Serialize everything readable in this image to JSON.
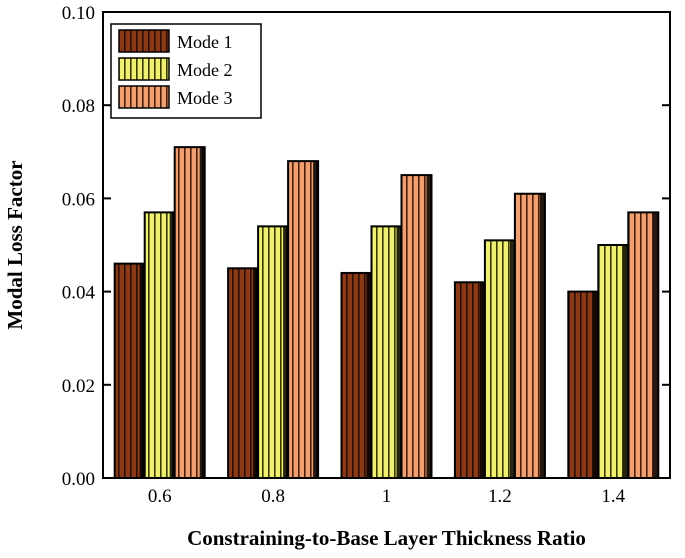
{
  "chart_data": {
    "type": "bar",
    "title": "",
    "xlabel": "Constraining-to-Base Layer Thickness Ratio",
    "ylabel": "Modal Loss Factor",
    "categories": [
      "0.6",
      "0.8",
      "1",
      "1.2",
      "1.4"
    ],
    "series": [
      {
        "name": "Mode 1",
        "color": "#8B3A18",
        "stripe": "#2a0f04",
        "values": [
          0.046,
          0.045,
          0.044,
          0.042,
          0.04
        ]
      },
      {
        "name": "Mode 2",
        "color": "#F0F070",
        "stripe": "#3a3a00",
        "values": [
          0.057,
          0.054,
          0.054,
          0.051,
          0.05
        ]
      },
      {
        "name": "Mode 3",
        "color": "#F0A070",
        "stripe": "#4a1e08",
        "values": [
          0.071,
          0.068,
          0.065,
          0.061,
          0.057
        ]
      }
    ],
    "ylim": [
      0.0,
      0.1
    ],
    "yticks": [
      "0.00",
      "0.02",
      "0.04",
      "0.06",
      "0.08",
      "0.10"
    ],
    "grid": false,
    "legend_position": "top-left"
  }
}
